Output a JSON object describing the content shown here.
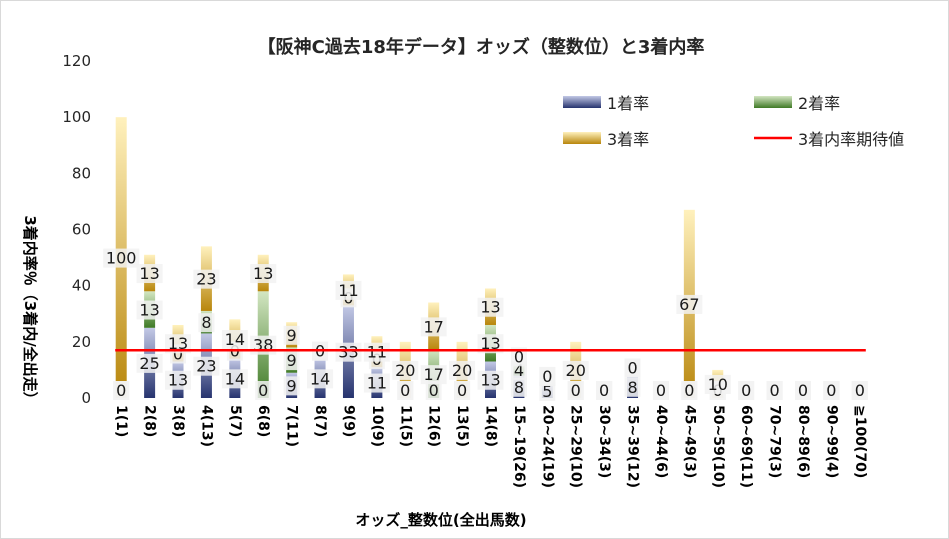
{
  "chart_data": {
    "type": "bar",
    "stacked": true,
    "title": "【阪神C過去18年データ】オッズ（整数位）と3着内率",
    "xlabel": "オッズ_整数位(全出馬数)",
    "ylabel": "3着内率％（3着内/全出走）",
    "ylim": [
      0,
      120
    ],
    "yticks": [
      0,
      20,
      40,
      60,
      80,
      100,
      120
    ],
    "grid": false,
    "legend_position": "top-right",
    "categories": [
      "1(1)",
      "2(8)",
      "3(8)",
      "4(13)",
      "5(7)",
      "6(8)",
      "7(11)",
      "8(7)",
      "9(9)",
      "10(9)",
      "11(5)",
      "12(6)",
      "13(5)",
      "14(8)",
      "15~19(26)",
      "20~24(19)",
      "25~29(10)",
      "30~34(3)",
      "35~39(12)",
      "40~44(6)",
      "45~49(3)",
      "50~59(10)",
      "60~69(11)",
      "70~79(3)",
      "80~89(6)",
      "90~99(4)",
      "≧100(70)"
    ],
    "series": [
      {
        "name": "1着率",
        "color": "#4a5a9c",
        "values": [
          0,
          25,
          13,
          23,
          14,
          0,
          9,
          14,
          33,
          11,
          0,
          0,
          0,
          13,
          8,
          5,
          0,
          0,
          8,
          0,
          0,
          0,
          0,
          0,
          0,
          0,
          0
        ]
      },
      {
        "name": "2着率",
        "color": "#5e8f3e",
        "values": [
          0,
          13,
          0,
          8,
          0,
          38,
          9,
          0,
          0,
          0,
          0,
          17,
          0,
          13,
          4,
          0,
          0,
          0,
          0,
          0,
          0,
          0,
          0,
          0,
          0,
          0,
          0
        ]
      },
      {
        "name": "3着率",
        "color": "#c9a13a",
        "values": [
          100,
          13,
          13,
          23,
          14,
          13,
          9,
          0,
          11,
          11,
          20,
          17,
          20,
          13,
          0,
          0,
          20,
          0,
          0,
          0,
          67,
          10,
          0,
          0,
          0,
          0,
          0
        ]
      },
      {
        "name": "3着内率期待値",
        "type": "line",
        "color": "#ff0000",
        "values": [
          17,
          17,
          17,
          17,
          17,
          17,
          17,
          17,
          17,
          17,
          17,
          17,
          17,
          17,
          17,
          17,
          17,
          17,
          17,
          17,
          17,
          17,
          17,
          17,
          17,
          17,
          17
        ]
      }
    ]
  }
}
